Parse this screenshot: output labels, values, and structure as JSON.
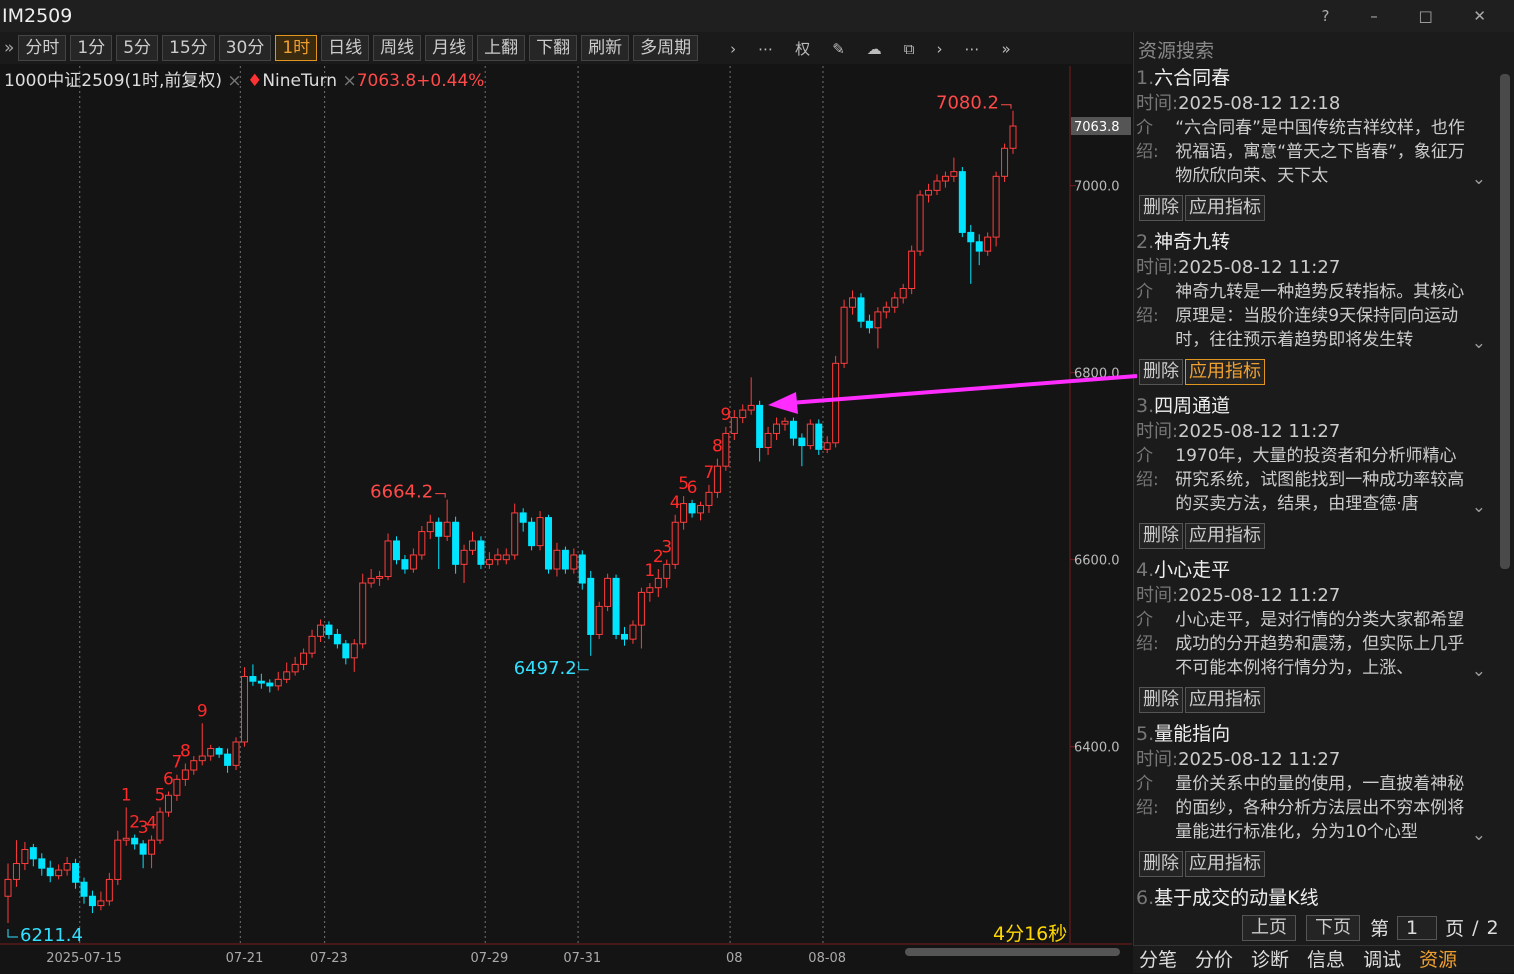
{
  "window": {
    "title": "IM2509"
  },
  "toolbar": {
    "buttons": [
      "分时",
      "1分",
      "5分",
      "15分",
      "30分",
      "1时",
      "日线",
      "周线",
      "月线",
      "上翻",
      "下翻",
      "刷新",
      "多周期"
    ],
    "active": "1时",
    "icon_text": "权"
  },
  "chart_header": {
    "name": "1000中证2509(1时,前复权)",
    "indicator": "NineTurn",
    "quote": "7063.8+0.44%"
  },
  "chart_data": {
    "type": "candlestick",
    "candles": [
      [
        6240,
        6275,
        6211.4,
        6258
      ],
      [
        6258,
        6300,
        6250,
        6275
      ],
      [
        6275,
        6298,
        6268,
        6290
      ],
      [
        6292,
        6296,
        6272,
        6280
      ],
      [
        6280,
        6286,
        6262,
        6270
      ],
      [
        6270,
        6278,
        6255,
        6262
      ],
      [
        6262,
        6274,
        6258,
        6268
      ],
      [
        6268,
        6282,
        6262,
        6275
      ],
      [
        6275,
        6280,
        6248,
        6255
      ],
      [
        6255,
        6260,
        6232,
        6240
      ],
      [
        6240,
        6246,
        6222,
        6230
      ],
      [
        6230,
        6245,
        6225,
        6235
      ],
      [
        6235,
        6265,
        6230,
        6258
      ],
      [
        6258,
        6310,
        6252,
        6300
      ],
      [
        6300,
        6335,
        6294,
        6302
      ],
      [
        6302,
        6306,
        6290,
        6296
      ],
      [
        6296,
        6300,
        6270,
        6285
      ],
      [
        6285,
        6305,
        6270,
        6300
      ],
      [
        6300,
        6335,
        6296,
        6330
      ],
      [
        6330,
        6352,
        6325,
        6348
      ],
      [
        6348,
        6370,
        6342,
        6365
      ],
      [
        6365,
        6382,
        6358,
        6375
      ],
      [
        6375,
        6390,
        6370,
        6385
      ],
      [
        6385,
        6425,
        6380,
        6390
      ],
      [
        6390,
        6402,
        6385,
        6398
      ],
      [
        6398,
        6400,
        6388,
        6392
      ],
      [
        6392,
        6398,
        6372,
        6380
      ],
      [
        6380,
        6410,
        6375,
        6405
      ],
      [
        6405,
        6485,
        6400,
        6475
      ],
      [
        6475,
        6488,
        6465,
        6470
      ],
      [
        6470,
        6478,
        6462,
        6468
      ],
      [
        6468,
        6472,
        6458,
        6465
      ],
      [
        6465,
        6480,
        6460,
        6472
      ],
      [
        6472,
        6490,
        6468,
        6480
      ],
      [
        6480,
        6496,
        6476,
        6488
      ],
      [
        6488,
        6505,
        6482,
        6500
      ],
      [
        6500,
        6525,
        6495,
        6518
      ],
      [
        6518,
        6536,
        6512,
        6530
      ],
      [
        6530,
        6534,
        6515,
        6520
      ],
      [
        6520,
        6526,
        6505,
        6510
      ],
      [
        6510,
        6514,
        6488,
        6495
      ],
      [
        6495,
        6515,
        6480,
        6510
      ],
      [
        6510,
        6585,
        6505,
        6575
      ],
      [
        6575,
        6590,
        6570,
        6580
      ],
      [
        6580,
        6588,
        6572,
        6582
      ],
      [
        6582,
        6628,
        6578,
        6620
      ],
      [
        6620,
        6625,
        6595,
        6600
      ],
      [
        6600,
        6605,
        6585,
        6590
      ],
      [
        6590,
        6612,
        6586,
        6605
      ],
      [
        6605,
        6636,
        6600,
        6630
      ],
      [
        6630,
        6648,
        6622,
        6640
      ],
      [
        6640,
        6645,
        6590,
        6625
      ],
      [
        6625,
        6664.2,
        6620,
        6640
      ],
      [
        6640,
        6646,
        6585,
        6595
      ],
      [
        6595,
        6616,
        6575,
        6610
      ],
      [
        6610,
        6630,
        6605,
        6620
      ],
      [
        6620,
        6625,
        6590,
        6595
      ],
      [
        6595,
        6608,
        6590,
        6600
      ],
      [
        6600,
        6612,
        6594,
        6605
      ],
      [
        6600,
        6612,
        6595,
        6605
      ],
      [
        6605,
        6660,
        6600,
        6650
      ],
      [
        6650,
        6655,
        6630,
        6640
      ],
      [
        6640,
        6645,
        6610,
        6615
      ],
      [
        6615,
        6652,
        6610,
        6645
      ],
      [
        6645,
        6648,
        6585,
        6590
      ],
      [
        6590,
        6618,
        6582,
        6610
      ],
      [
        6610,
        6614,
        6585,
        6590
      ],
      [
        6590,
        6612,
        6585,
        6605
      ],
      [
        6605,
        6610,
        6568,
        6575
      ],
      [
        6580,
        6588,
        6497.2,
        6520
      ],
      [
        6520,
        6555,
        6515,
        6550
      ],
      [
        6550,
        6585,
        6545,
        6580
      ],
      [
        6580,
        6584,
        6515,
        6520
      ],
      [
        6520,
        6528,
        6508,
        6515
      ],
      [
        6515,
        6535,
        6510,
        6530
      ],
      [
        6530,
        6570,
        6505,
        6565
      ],
      [
        6565,
        6575,
        6555,
        6570
      ],
      [
        6570,
        6590,
        6560,
        6580
      ],
      [
        6580,
        6600,
        6570,
        6595
      ],
      [
        6595,
        6648,
        6590,
        6640
      ],
      [
        6640,
        6668,
        6632,
        6660
      ],
      [
        6660,
        6664,
        6645,
        6650
      ],
      [
        6650,
        6662,
        6642,
        6658
      ],
      [
        6658,
        6680,
        6650,
        6672
      ],
      [
        6672,
        6708,
        6666,
        6700
      ],
      [
        6700,
        6742,
        6695,
        6735
      ],
      [
        6735,
        6760,
        6728,
        6752
      ],
      [
        6752,
        6766,
        6746,
        6760
      ],
      [
        6760,
        6795,
        6755,
        6765
      ],
      [
        6765,
        6770,
        6705,
        6720
      ],
      [
        6720,
        6742,
        6712,
        6735
      ],
      [
        6735,
        6752,
        6728,
        6745
      ],
      [
        6745,
        6752,
        6738,
        6748
      ],
      [
        6748,
        6752,
        6722,
        6730
      ],
      [
        6730,
        6735,
        6700,
        6722
      ],
      [
        6722,
        6750,
        6718,
        6745
      ],
      [
        6745,
        6750,
        6712,
        6718
      ],
      [
        6718,
        6732,
        6714,
        6725
      ],
      [
        6725,
        6818,
        6720,
        6810
      ],
      [
        6810,
        6878,
        6805,
        6870
      ],
      [
        6870,
        6888,
        6862,
        6880
      ],
      [
        6880,
        6885,
        6848,
        6855
      ],
      [
        6855,
        6862,
        6842,
        6848
      ],
      [
        6848,
        6870,
        6826,
        6865
      ],
      [
        6865,
        6876,
        6858,
        6870
      ],
      [
        6870,
        6886,
        6864,
        6880
      ],
      [
        6880,
        6895,
        6874,
        6890
      ],
      [
        6890,
        6936,
        6884,
        6930
      ],
      [
        6930,
        6995,
        6925,
        6990
      ],
      [
        6990,
        7002,
        6982,
        6995
      ],
      [
        6995,
        7012,
        6990,
        7005
      ],
      [
        7005,
        7015,
        6998,
        7010
      ],
      [
        7010,
        7030,
        7004,
        7015
      ],
      [
        7015,
        7020,
        6945,
        6950
      ],
      [
        6950,
        6958,
        6895,
        6940
      ],
      [
        6940,
        6948,
        6915,
        6930
      ],
      [
        6930,
        6950,
        6925,
        6945
      ],
      [
        6945,
        7015,
        6935,
        7010
      ],
      [
        7010,
        7045,
        7004,
        7040
      ],
      [
        7040,
        7080.2,
        7034,
        7063.8
      ]
    ],
    "categories": [
      null,
      null,
      null,
      null,
      null,
      null,
      null,
      null,
      null,
      "2025-07-15",
      null,
      null,
      null,
      null,
      null,
      null,
      null,
      null,
      null,
      null,
      null,
      null,
      null,
      null,
      null,
      null,
      null,
      null,
      "07-21",
      null,
      null,
      null,
      null,
      null,
      null,
      null,
      null,
      null,
      "07-23",
      null,
      null,
      null,
      null,
      null,
      null,
      null,
      null,
      null,
      null,
      null,
      null,
      null,
      null,
      null,
      null,
      null,
      null,
      "07-29",
      null,
      null,
      null,
      null,
      null,
      null,
      null,
      null,
      null,
      null,
      "07-31",
      null,
      null,
      null,
      null,
      null,
      null,
      null,
      null,
      null,
      null,
      null,
      null,
      null,
      null,
      null,
      null,
      null,
      "08",
      null,
      null,
      null,
      null,
      null,
      null,
      null,
      null,
      null,
      null,
      "08-08",
      null,
      null,
      null,
      null,
      null,
      null,
      null,
      null,
      null,
      null,
      null,
      null,
      null,
      null,
      null,
      null,
      null,
      null,
      null,
      null,
      null,
      null
    ],
    "td_counts": [
      null,
      null,
      null,
      null,
      null,
      null,
      null,
      null,
      null,
      null,
      null,
      null,
      null,
      null,
      "1",
      "2",
      "3",
      "4",
      "5",
      "6",
      "7",
      "8",
      null,
      "9",
      null,
      null,
      null,
      null,
      null,
      null,
      null,
      null,
      null,
      null,
      null,
      null,
      null,
      null,
      null,
      null,
      null,
      null,
      null,
      null,
      null,
      null,
      null,
      null,
      null,
      null,
      null,
      null,
      null,
      null,
      null,
      null,
      null,
      null,
      null,
      null,
      null,
      null,
      null,
      null,
      null,
      null,
      null,
      null,
      null,
      null,
      null,
      null,
      null,
      null,
      null,
      null,
      "1",
      "2",
      "3",
      "4",
      "5",
      "6",
      null,
      "7",
      "8",
      "9",
      null,
      null,
      null,
      null,
      null,
      null,
      null,
      null,
      null,
      null,
      null,
      null,
      null,
      null,
      null,
      null,
      null,
      null,
      null,
      null,
      null,
      null,
      null,
      null,
      null,
      null,
      null,
      null,
      null,
      null,
      null,
      null,
      null,
      null
    ],
    "highs": [
      7080.2,
      6664.2
    ],
    "lows": [
      6497.2,
      6211.4
    ],
    "last_price": 7063.8,
    "up_color": "#ff3d3d",
    "down_color": "#00e4ff",
    "ylim": [
      6190,
      7128
    ],
    "yticks": [
      {
        "value": 7000,
        "label": "7000.0"
      },
      {
        "value": 6800,
        "label": "6800.0"
      },
      {
        "value": 6600,
        "label": "6600.0"
      },
      {
        "value": 6400,
        "label": "6400.0"
      }
    ],
    "countdown": "4分16秒"
  },
  "panel": {
    "title": "资源搜索",
    "time_label": "时间:",
    "intro_label": "介绍:",
    "delete": "删除",
    "apply": "应用指标",
    "items": [
      {
        "no": "1.",
        "title": "六合同春",
        "time": "2025-08-12 12:18",
        "intro": "“六合同春”是中国传统吉祥纹样，也作祝福语，寓意“普天之下皆春”，象征万物欣欣向荣、天下太"
      },
      {
        "no": "2.",
        "title": "神奇九转",
        "time": "2025-08-12 11:27",
        "intro": "神奇九转是一种趋势反转指标。其核心原理是：当股价连续9天保持同向运动时，往往预示着趋势即将发生转"
      },
      {
        "no": "3.",
        "title": "四周通道",
        "time": "2025-08-12 11:27",
        "intro": "1970年，大量的投资者和分析师精心研究系统，试图能找到一种成功率较高的买卖方法，结果，由理查德·唐"
      },
      {
        "no": "4.",
        "title": "小心走平",
        "time": "2025-08-12 11:27",
        "intro": "小心走平，是对行情的分类大家都希望成功的分开趋势和震荡，但实际上几乎不可能本例将行情分为，上涨、"
      },
      {
        "no": "5.",
        "title": "量能指向",
        "time": "2025-08-12 11:27",
        "intro": "量价关系中的量的使用，一直披着神秘的面纱，各种分析方法层出不穷本例将量能进行标准化，分为10个心型"
      },
      {
        "no": "6.",
        "title": "基于成交的动量K线"
      }
    ],
    "pager": {
      "prev": "上页",
      "next": "下页",
      "page_prefix": "第",
      "page": "1",
      "page_suffix": "页",
      "sep": "/",
      "total": "2"
    },
    "tabs": [
      "分笔",
      "分价",
      "诊断",
      "信息",
      "调试",
      "资源"
    ],
    "active_tab": "资源"
  }
}
